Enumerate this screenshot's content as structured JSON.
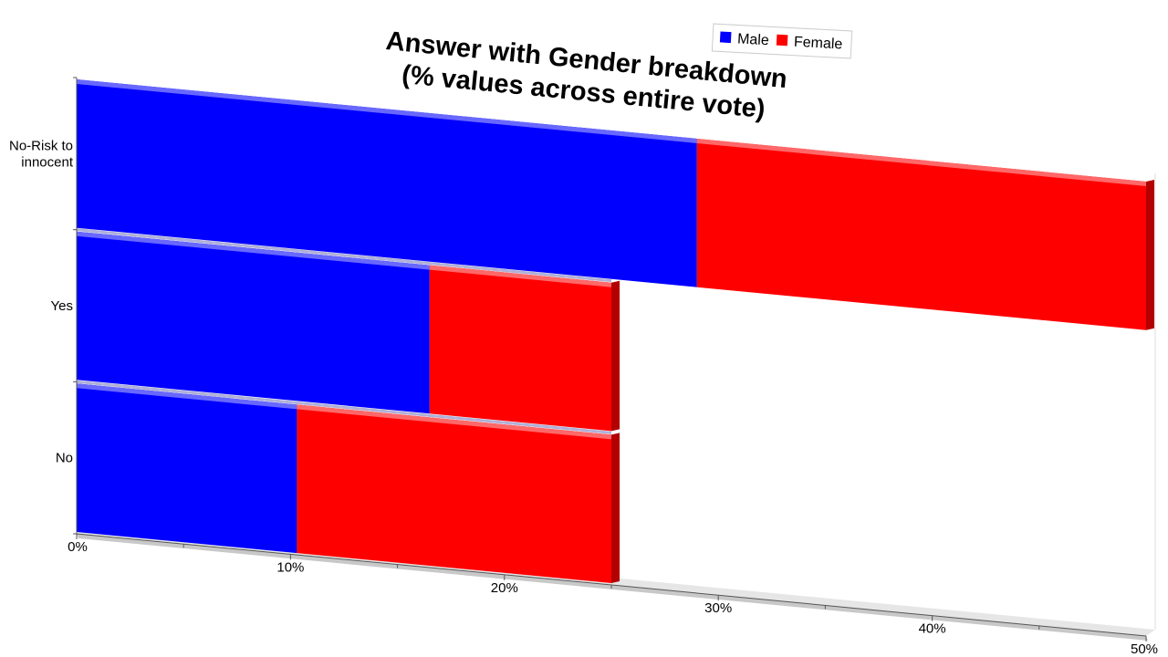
{
  "chart_data": {
    "type": "bar",
    "orientation": "horizontal",
    "stacked": true,
    "title_lines": [
      "Answer with Gender breakdown",
      "(% values across entire vote)"
    ],
    "categories": [
      "No",
      "Yes",
      "No-Risk to innocent"
    ],
    "category_label_lines": [
      [
        "No"
      ],
      [
        "Yes"
      ],
      [
        "No-Risk to",
        "innocent"
      ]
    ],
    "series": [
      {
        "name": "Male",
        "color": "#0000ff",
        "values": [
          29,
          16.5,
          10.3
        ]
      },
      {
        "name": "Female",
        "color": "#ff0000",
        "values": [
          21,
          8.5,
          14.7
        ]
      }
    ],
    "xlim": [
      0,
      50
    ],
    "x_ticks": [
      "0%",
      "10%",
      "20%",
      "30%",
      "40%",
      "50%"
    ],
    "legend_position": "top-right",
    "grid": false
  }
}
